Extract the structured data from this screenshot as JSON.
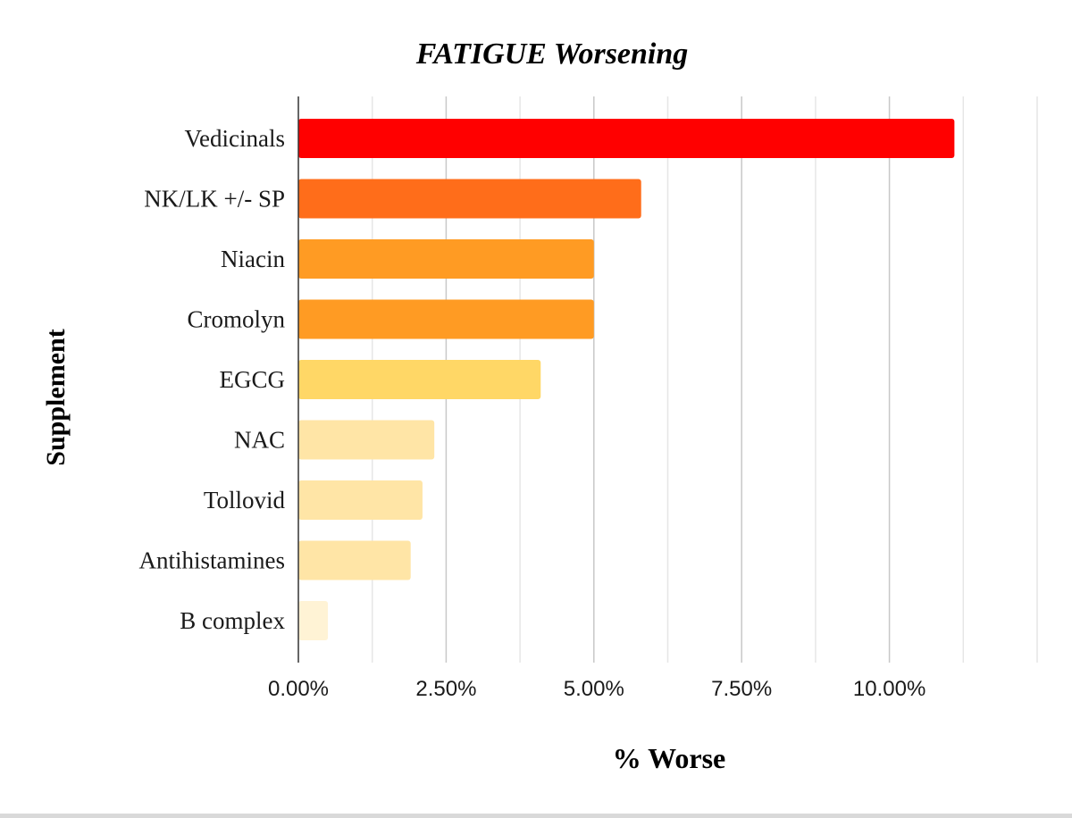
{
  "chart_data": {
    "type": "bar",
    "orientation": "horizontal",
    "title": "FATIGUE Worsening",
    "xlabel": "% Worse",
    "ylabel": "Supplement",
    "categories": [
      "Vedicinals",
      "NK/LK +/- SP",
      "Niacin",
      "Cromolyn",
      "EGCG",
      "NAC",
      "Tollovid",
      "Antihistamines",
      "B complex"
    ],
    "values": [
      11.1,
      5.8,
      5.0,
      5.0,
      4.1,
      2.3,
      2.1,
      1.9,
      0.5
    ],
    "colors": [
      "#ff0000",
      "#ff6d1a",
      "#ff9b23",
      "#ff9b23",
      "#ffd766",
      "#ffe5a6",
      "#ffe5a6",
      "#ffe5a6",
      "#fff3d5"
    ],
    "xlim": [
      0,
      12.5
    ],
    "xticks": [
      0,
      2.5,
      5,
      7.5,
      10
    ],
    "xtick_labels": [
      "0.00%",
      "2.50%",
      "5.00%",
      "7.50%",
      "10.00%"
    ],
    "minor_gridlines": [
      1.25,
      3.75,
      6.25,
      8.75,
      11.25,
      12.5
    ],
    "grid": true,
    "legend": "none"
  }
}
